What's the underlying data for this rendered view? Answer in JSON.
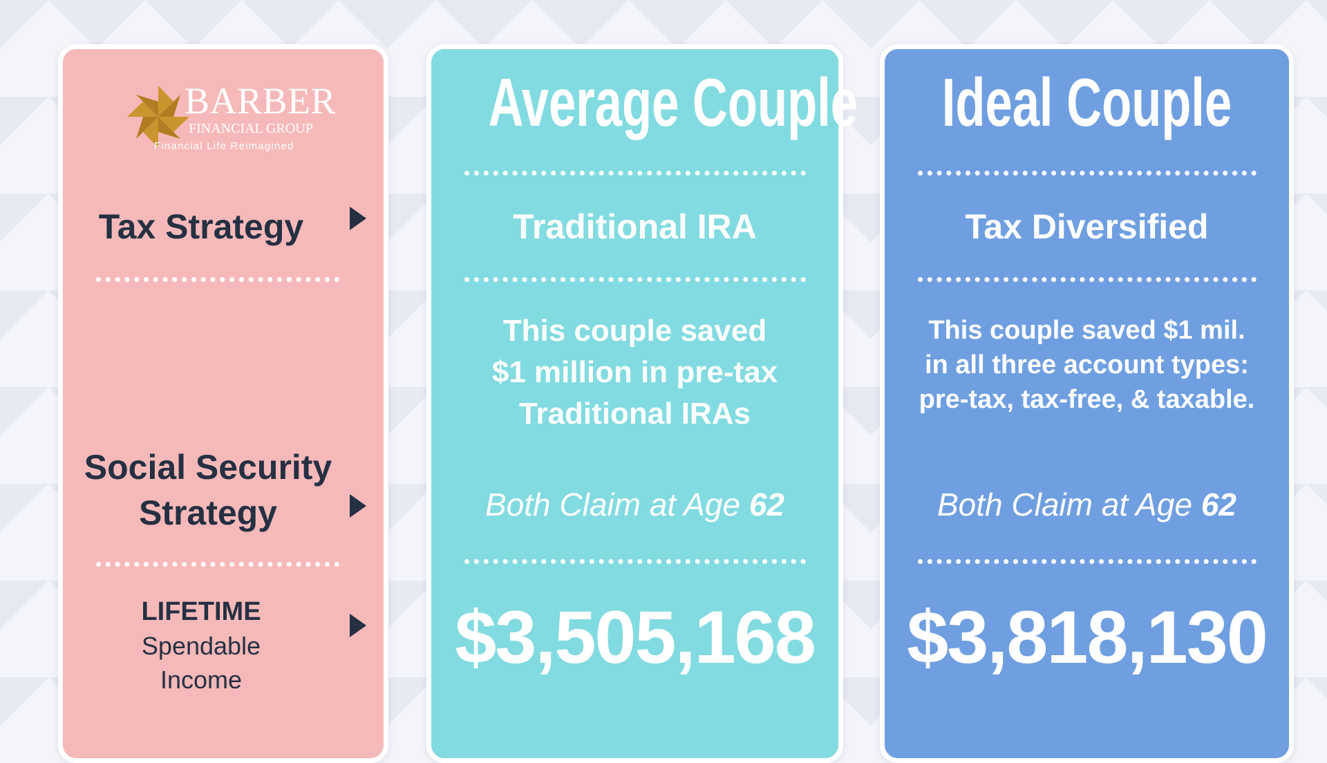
{
  "colors": {
    "left_panel": "#f6b9b9",
    "average_panel": "#82dbe0",
    "ideal_panel": "#6f9fe0",
    "label_text": "#253042",
    "logo_gold": "#c9952f"
  },
  "logo": {
    "name_line": "BARBER",
    "subline": "FINANCIAL GROUP",
    "tagline": "Financial Life Reimagined",
    "icon": "pinwheel-logo-icon"
  },
  "rows": {
    "tax_strategy": "Tax Strategy",
    "social_security_line1": "Social Security",
    "social_security_line2": "Strategy",
    "lifetime_line1": "LIFETIME",
    "lifetime_line2": "Spendable",
    "lifetime_line3": "Income",
    "arrow_icon": "triangle-right-icon"
  },
  "average": {
    "title": "Average Couple",
    "strategy": "Traditional IRA",
    "desc_lines": [
      "This couple saved",
      "$1 million in pre-tax",
      "Traditional IRAs"
    ],
    "claim_prefix": "Both Claim at Age ",
    "claim_age": "62",
    "amount": "$3,505,168"
  },
  "ideal": {
    "title": "Ideal Couple",
    "strategy": "Tax Diversified",
    "desc_lines": [
      "This couple saved $1 mil.",
      "in all three account types:",
      "pre-tax, tax-free, & taxable."
    ],
    "claim_prefix": "Both Claim at Age ",
    "claim_age": "62",
    "amount": "$3,818,130"
  }
}
